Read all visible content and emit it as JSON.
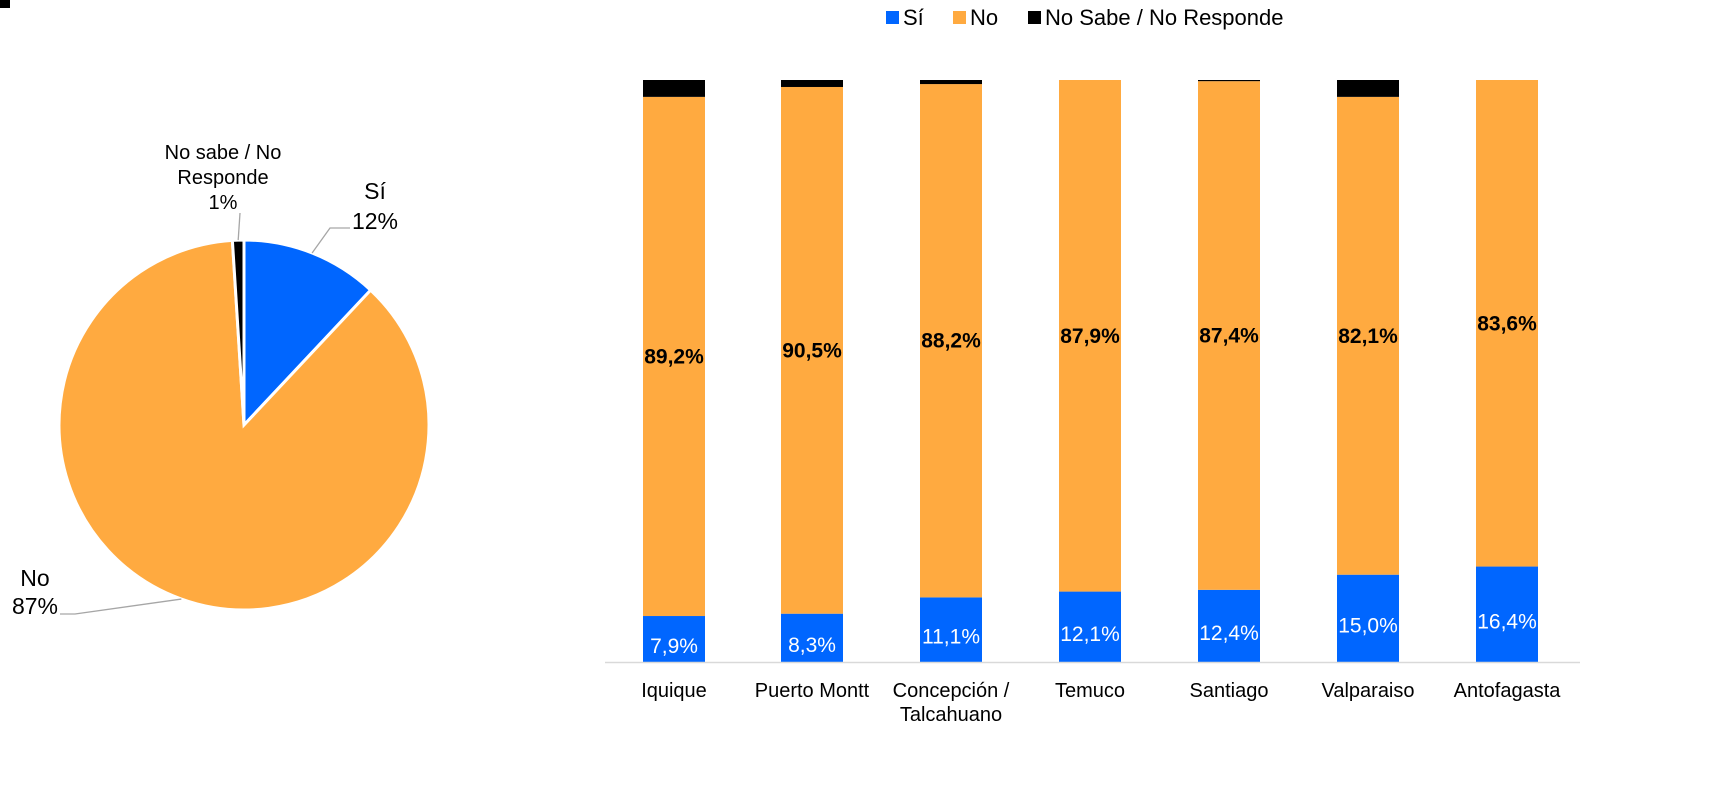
{
  "chart_data": [
    {
      "type": "pie",
      "slices": [
        {
          "name": "Sí",
          "label": "Sí",
          "pct_label": "12%",
          "value": 12,
          "color": "#0066FF"
        },
        {
          "name": "No",
          "label": "No",
          "pct_label": "87%",
          "value": 87,
          "color": "#FFAA40"
        },
        {
          "name": "No sabe / No Responde",
          "label_lines": [
            "No sabe / No",
            "Responde"
          ],
          "pct_label": "1%",
          "value": 1,
          "color": "#000000"
        }
      ]
    },
    {
      "type": "bar",
      "stacked": true,
      "percent_stacked": true,
      "categories": [
        "Iquique",
        "Puerto Montt",
        "Concepción / Talcahuano",
        "Temuco",
        "Santiago",
        "Valparaiso",
        "Antofagasta"
      ],
      "category_lines": [
        [
          "Iquique"
        ],
        [
          "Puerto Montt"
        ],
        [
          "Concepción /",
          "Talcahuano"
        ],
        [
          "Temuco"
        ],
        [
          "Santiago"
        ],
        [
          "Valparaiso"
        ],
        [
          "Antofagasta"
        ]
      ],
      "series": [
        {
          "name": "Sí",
          "color": "#0066FF",
          "values": [
            7.9,
            8.3,
            11.1,
            12.1,
            12.4,
            15.0,
            16.4
          ],
          "labels": [
            "7,9%",
            "8,3%",
            "11,1%",
            "12,1%",
            "12,4%",
            "15,0%",
            "16,4%"
          ]
        },
        {
          "name": "No",
          "color": "#FFAA40",
          "values": [
            89.2,
            90.5,
            88.2,
            87.9,
            87.4,
            82.1,
            83.6
          ],
          "labels": [
            "89,2%",
            "90,5%",
            "88,2%",
            "87,9%",
            "87,4%",
            "82,1%",
            "83,6%"
          ]
        },
        {
          "name": "No Sabe / No Responde",
          "color": "#000000",
          "values": [
            2.9,
            1.2,
            0.7,
            0.0,
            0.2,
            2.9,
            0.0
          ]
        }
      ],
      "ylim": [
        0,
        100
      ],
      "legend": {
        "position": "top",
        "entries": [
          "Sí",
          "No",
          "No Sabe / No Responde"
        ]
      },
      "grid": false
    }
  ]
}
